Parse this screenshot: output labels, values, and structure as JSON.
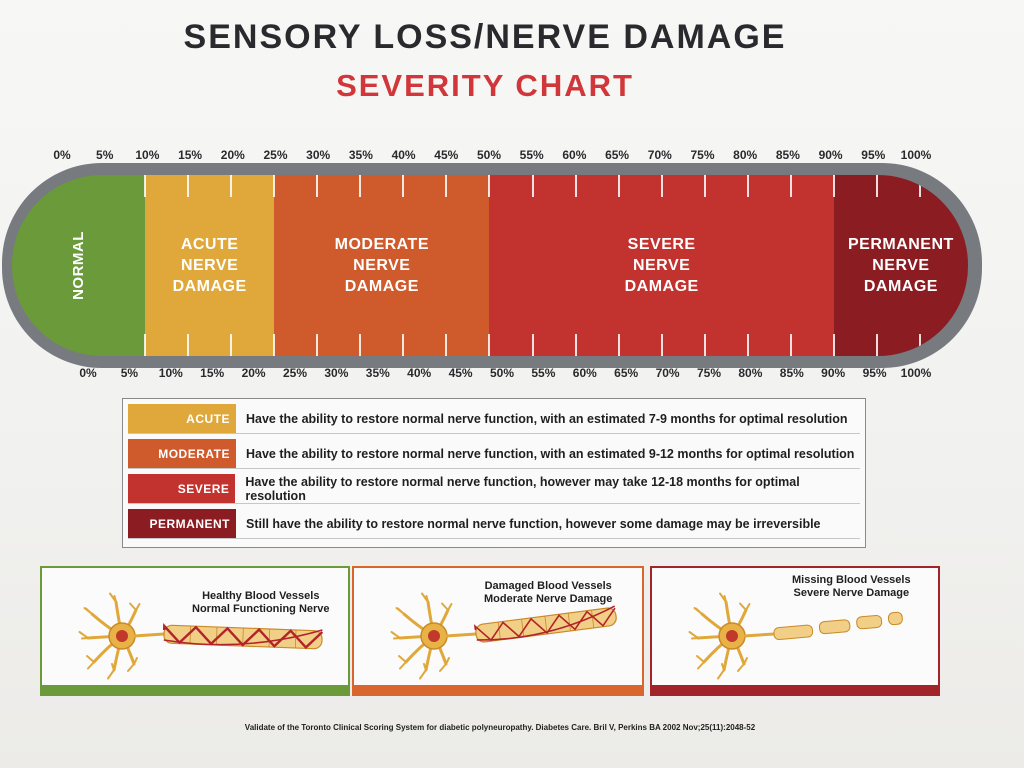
{
  "title": "SENSORY LOSS/NERVE DAMAGE",
  "subtitle": "SEVERITY CHART",
  "scale": {
    "ticks": [
      {
        "label": "0%",
        "pct": 0
      },
      {
        "label": "5%",
        "pct": 5
      },
      {
        "label": "10%",
        "pct": 10
      },
      {
        "label": "15%",
        "pct": 15
      },
      {
        "label": "20%",
        "pct": 20
      },
      {
        "label": "25%",
        "pct": 25
      },
      {
        "label": "30%",
        "pct": 30
      },
      {
        "label": "35%",
        "pct": 35
      },
      {
        "label": "40%",
        "pct": 40
      },
      {
        "label": "45%",
        "pct": 45
      },
      {
        "label": "50%",
        "pct": 50
      },
      {
        "label": "55%",
        "pct": 55
      },
      {
        "label": "60%",
        "pct": 60
      },
      {
        "label": "65%",
        "pct": 65
      },
      {
        "label": "70%",
        "pct": 70
      },
      {
        "label": "75%",
        "pct": 75
      },
      {
        "label": "80%",
        "pct": 80
      },
      {
        "label": "85%",
        "pct": 85
      },
      {
        "label": "90%",
        "pct": 90
      },
      {
        "label": "95%",
        "pct": 95
      },
      {
        "label": "100%",
        "pct": 100
      }
    ]
  },
  "segments": [
    {
      "key": "normal",
      "label": "NORMAL",
      "from": 0,
      "to": 5,
      "color": "#6a9a3a"
    },
    {
      "key": "acute",
      "label": "ACUTE\nNERVE\nDAMAGE",
      "from": 5,
      "to": 20,
      "color": "#e0a83a"
    },
    {
      "key": "moderate",
      "label": "MODERATE\nNERVE\nDAMAGE",
      "from": 20,
      "to": 45,
      "color": "#cf5a2c"
    },
    {
      "key": "severe",
      "label": "SEVERE\nNERVE\nDAMAGE",
      "from": 45,
      "to": 85,
      "color": "#c2322e"
    },
    {
      "key": "permanent",
      "label": "PERMANENT\nNERVE\nDAMAGE",
      "from": 85,
      "to": 100,
      "color": "#8b1c22"
    }
  ],
  "legend": [
    {
      "label": "ACUTE",
      "color": "#e0a83a",
      "text": "Have the ability to restore normal nerve function, with an estimated 7-9 months for optimal resolution"
    },
    {
      "label": "MODERATE",
      "color": "#cf5a2c",
      "text": "Have the ability to restore normal nerve function, with an estimated 9-12 months for optimal resolution"
    },
    {
      "label": "SEVERE",
      "color": "#c2322e",
      "text": "Have the ability to restore normal nerve function, however may take 12-18 months for optimal resolution"
    },
    {
      "label": "PERMANENT",
      "color": "#8b1c22",
      "text": "Still have the ability to restore normal nerve function, however some damage may be irreversible"
    }
  ],
  "cards": [
    {
      "label": "Healthy Blood Vessels\nNormal Functioning Nerve",
      "border": "#6a9a3a",
      "state": "healthy"
    },
    {
      "label": "Damaged Blood Vessels\nModerate Nerve Damage",
      "border": "#d9662c",
      "state": "damaged"
    },
    {
      "label": "Missing Blood Vessels\nSevere Nerve Damage",
      "border": "#a3232a",
      "state": "missing"
    }
  ],
  "citation": "Validate of the Toronto Clinical Scoring System for diabetic polyneuropathy. Diabetes Care. Bril V, Perkins BA 2002 Nov;25(11):2048-52"
}
